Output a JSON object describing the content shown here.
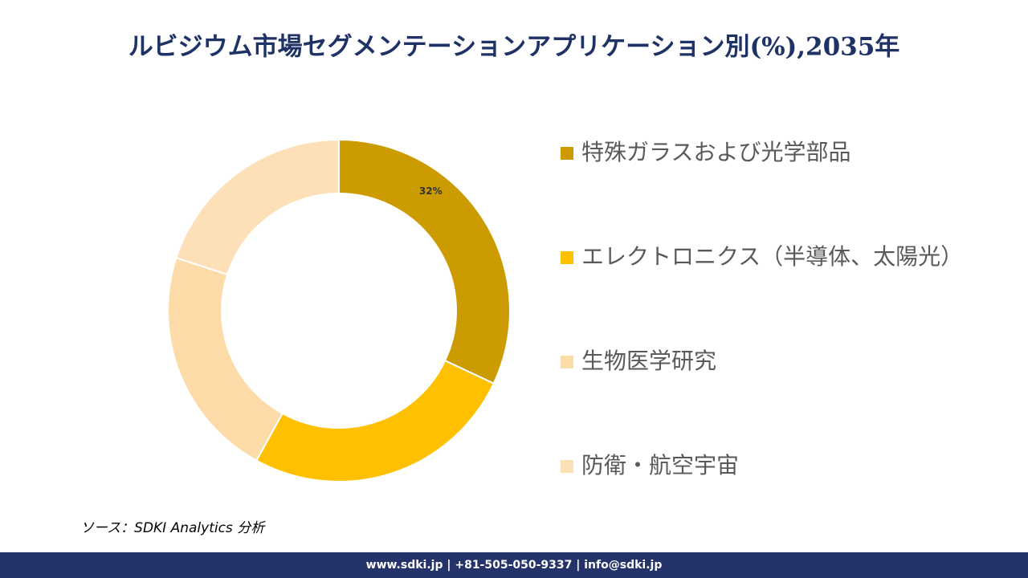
{
  "chart_data": {
    "type": "donut",
    "title": "ルビジウム市場セグメンテーションアプリケーション別(%),2035年",
    "categories": [
      "特殊ガラスおよび光学部品",
      "エレクトロニクス（半導体、太陽光）",
      "生物医学研究",
      "防衛・航空宇宙"
    ],
    "values": [
      32,
      26,
      22,
      20
    ],
    "value_labels": [
      "32%",
      null,
      null,
      null
    ],
    "colors": [
      "#CC9B00",
      "#FFC000",
      "#FDDBA8",
      "#FDE0B8"
    ],
    "source": "ソース：SDKI Analytics 分析",
    "footer": "www.sdki.jp | +81-505-050-9337 | info@sdki.jp"
  }
}
